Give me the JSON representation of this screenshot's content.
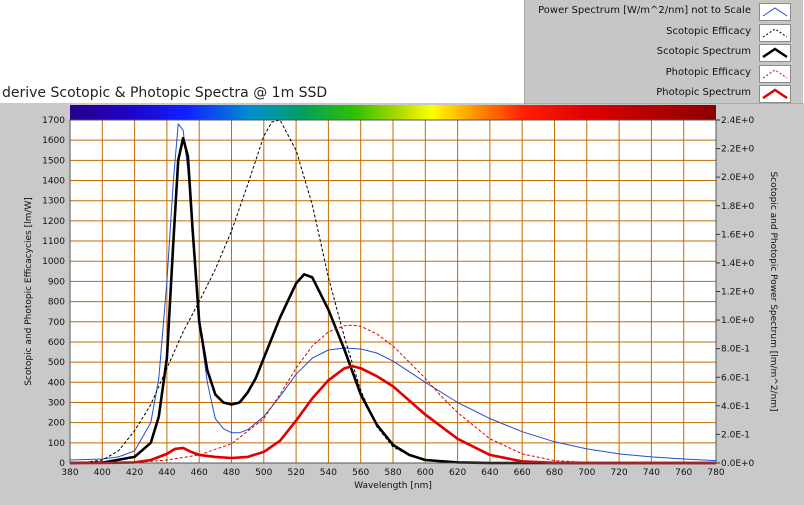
{
  "window": {
    "title": "derive Scotopic & Photopic Spectra @ 1m SSD"
  },
  "legend": [
    {
      "label": "Power Spectrum [W/m^2/nm] not to Scale",
      "color": "#2050d0",
      "style": "solid-thin"
    },
    {
      "label": "Scotopic Efficacy",
      "color": "#000000",
      "style": "dashed-thin"
    },
    {
      "label": "Scotopic Spectrum",
      "color": "#000000",
      "style": "solid-thick"
    },
    {
      "label": "Photopic Efficacy",
      "color": "#e00000",
      "style": "dashed-thin"
    },
    {
      "label": "Photopic Spectrum",
      "color": "#e00000",
      "style": "solid-thick"
    }
  ],
  "chart_data": {
    "type": "line",
    "title": "derive Scotopic & Photopic Spectra @ 1m SSD",
    "xlabel": "Wavelength [nm]",
    "ylabel": "Scotopic and Photopic Efficacycies [lm/W]",
    "y2label": "Scotopic and Photopic Power Spectrum [lm/m^2/nm]",
    "xlim": [
      380,
      780
    ],
    "ylim": [
      0,
      1700
    ],
    "y2lim": [
      0,
      2.4
    ],
    "grid": true,
    "legend_position": "top-right",
    "x_ticks": [
      380,
      400,
      420,
      440,
      460,
      480,
      500,
      520,
      540,
      560,
      580,
      600,
      620,
      640,
      660,
      680,
      700,
      720,
      740,
      760,
      780
    ],
    "y_ticks": [
      0,
      100,
      200,
      300,
      400,
      500,
      600,
      700,
      800,
      900,
      1000,
      1100,
      1200,
      1300,
      1400,
      1500,
      1600,
      1700
    ],
    "y2_ticks": [
      "0.0E+0",
      "2.0E-1",
      "4.0E-1",
      "6.0E-1",
      "8.0E-1",
      "1.0E+0",
      "1.2E+0",
      "1.4E+0",
      "1.6E+0",
      "1.8E+0",
      "2.0E+0",
      "2.2E+0",
      "2.4E+0"
    ],
    "colors": {
      "plot_bg": "#ffffff",
      "grid": "#c46a00",
      "power": "#2050d0",
      "scotopic": "#000000",
      "photopic": "#e00000"
    },
    "series": [
      {
        "name": "Power Spectrum [W/m^2/nm] not to Scale",
        "axis": "y",
        "style": "solid-thin",
        "color": "#2050d0",
        "x": [
          380,
          400,
          410,
          420,
          430,
          435,
          440,
          444,
          447,
          450,
          453,
          456,
          460,
          465,
          470,
          475,
          480,
          485,
          490,
          500,
          510,
          520,
          530,
          540,
          550,
          560,
          570,
          580,
          600,
          620,
          640,
          660,
          680,
          700,
          720,
          740,
          760,
          780
        ],
        "y": [
          15,
          20,
          30,
          60,
          200,
          420,
          900,
          1400,
          1680,
          1650,
          1450,
          1150,
          700,
          400,
          220,
          170,
          150,
          150,
          165,
          230,
          330,
          440,
          520,
          560,
          570,
          565,
          545,
          505,
          400,
          300,
          220,
          155,
          105,
          70,
          45,
          30,
          20,
          12
        ]
      },
      {
        "name": "Scotopic Efficacy",
        "axis": "y",
        "style": "dashed-thin",
        "color": "#000000",
        "x": [
          380,
          390,
          400,
          410,
          420,
          430,
          440,
          450,
          460,
          470,
          480,
          490,
          500,
          505,
          510,
          520,
          530,
          540,
          550,
          560,
          570,
          580,
          590,
          600,
          620,
          640,
          660,
          680,
          700,
          720,
          780
        ],
        "y": [
          1,
          4,
          15,
          60,
          160,
          290,
          470,
          650,
          800,
          960,
          1150,
          1380,
          1620,
          1690,
          1700,
          1550,
          1280,
          920,
          620,
          360,
          180,
          80,
          38,
          16,
          4,
          1,
          0,
          0,
          0,
          0,
          0
        ]
      },
      {
        "name": "Scotopic Spectrum",
        "axis": "y",
        "style": "solid-thick",
        "color": "#000000",
        "x": [
          380,
          400,
          420,
          430,
          435,
          440,
          444,
          447,
          450,
          453,
          456,
          460,
          465,
          470,
          475,
          480,
          485,
          490,
          495,
          500,
          510,
          520,
          525,
          530,
          540,
          550,
          560,
          570,
          580,
          590,
          600,
          620,
          640,
          660,
          700,
          780
        ],
        "y": [
          0,
          2,
          30,
          100,
          230,
          520,
          1100,
          1500,
          1610,
          1520,
          1150,
          700,
          460,
          340,
          300,
          290,
          300,
          350,
          420,
          520,
          720,
          890,
          935,
          920,
          760,
          560,
          340,
          190,
          90,
          40,
          15,
          3,
          0,
          0,
          0,
          0
        ]
      },
      {
        "name": "Photopic Efficacy",
        "axis": "y",
        "style": "dashed-thin",
        "color": "#e00000",
        "x": [
          380,
          400,
          420,
          440,
          460,
          480,
          500,
          510,
          520,
          530,
          540,
          550,
          555,
          560,
          570,
          580,
          590,
          600,
          610,
          620,
          640,
          660,
          680,
          700,
          720,
          780
        ],
        "y": [
          0,
          0,
          2,
          15,
          40,
          95,
          220,
          340,
          470,
          580,
          650,
          680,
          683,
          678,
          640,
          580,
          500,
          420,
          330,
          250,
          120,
          45,
          12,
          3,
          1,
          0
        ]
      },
      {
        "name": "Photopic Spectrum",
        "axis": "y",
        "style": "solid-thick",
        "color": "#e00000",
        "x": [
          380,
          400,
          420,
          430,
          440,
          445,
          450,
          455,
          460,
          470,
          480,
          490,
          500,
          510,
          520,
          530,
          540,
          550,
          555,
          560,
          570,
          580,
          590,
          600,
          620,
          640,
          660,
          680,
          700,
          780
        ],
        "y": [
          0,
          0,
          3,
          15,
          45,
          70,
          75,
          55,
          40,
          30,
          25,
          30,
          55,
          110,
          210,
          320,
          410,
          470,
          480,
          470,
          430,
          380,
          310,
          240,
          120,
          40,
          8,
          1,
          0,
          0
        ]
      }
    ]
  }
}
